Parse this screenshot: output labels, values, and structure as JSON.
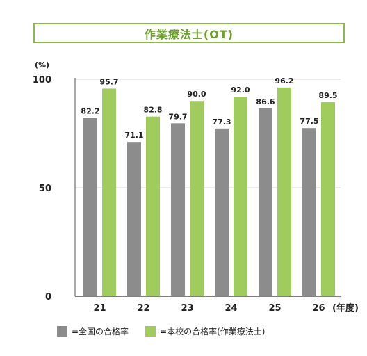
{
  "chart_data": {
    "type": "bar",
    "title": "作業療法士(OT)",
    "ylabel": "(%)",
    "xunit": "(年度)",
    "categories": [
      "21",
      "22",
      "23",
      "24",
      "25",
      "26"
    ],
    "ylim": [
      0,
      100
    ],
    "yticks": [
      0,
      50,
      100
    ],
    "grid": true,
    "series": [
      {
        "name": "=全国の合格率",
        "color": "#8c8c8c",
        "values": [
          82.2,
          71.1,
          79.7,
          77.3,
          86.6,
          77.5
        ]
      },
      {
        "name": "=本校の合格率(作業療法士)",
        "color": "#9fcc5c",
        "values": [
          95.7,
          82.8,
          90.0,
          92.0,
          96.2,
          89.5
        ]
      }
    ],
    "legend_position": "bottom"
  }
}
